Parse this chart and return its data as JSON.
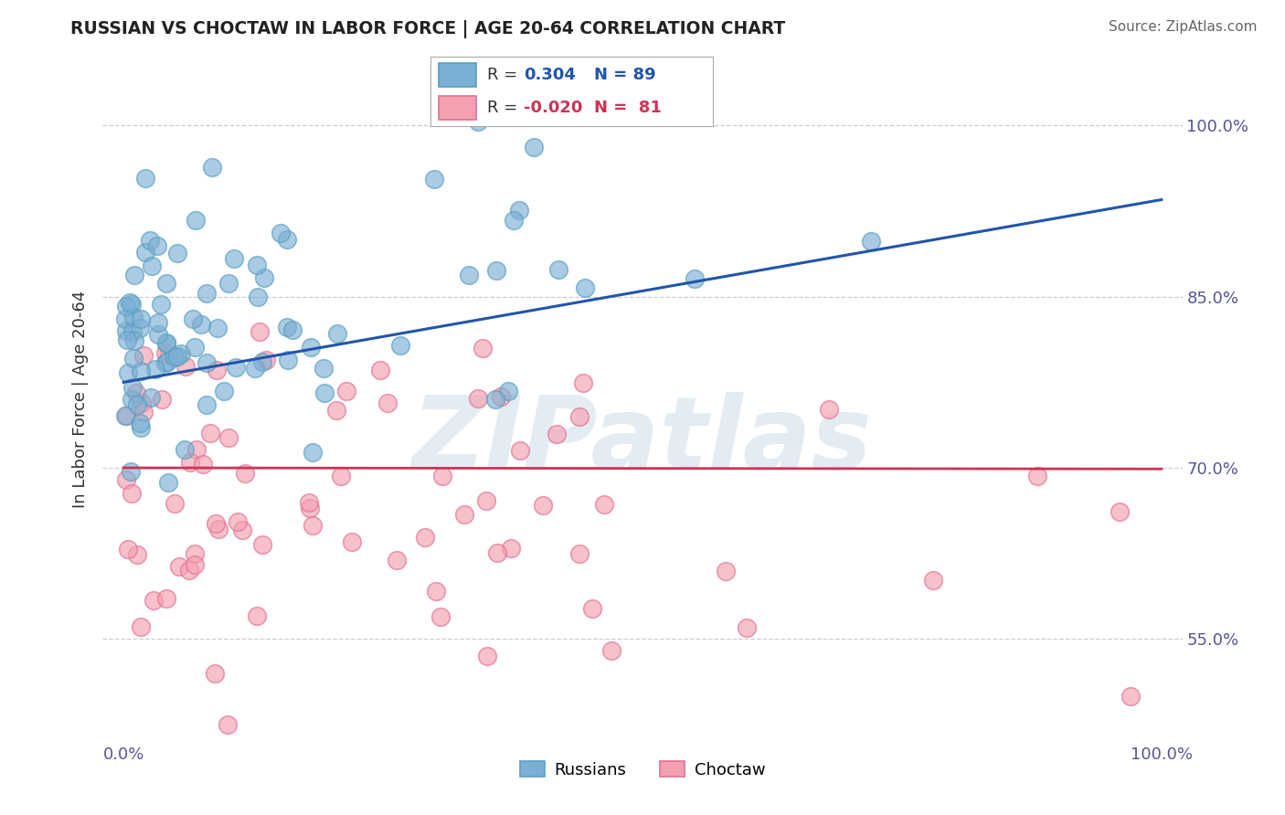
{
  "title": "RUSSIAN VS CHOCTAW IN LABOR FORCE | AGE 20-64 CORRELATION CHART",
  "source": "Source: ZipAtlas.com",
  "ylabel": "In Labor Force | Age 20-64",
  "xlim": [
    -0.02,
    1.02
  ],
  "ylim": [
    0.46,
    1.06
  ],
  "x_tick_labels": [
    "0.0%",
    "100.0%"
  ],
  "x_tick_pos": [
    0.0,
    1.0
  ],
  "y_tick_labels": [
    "55.0%",
    "70.0%",
    "85.0%",
    "100.0%"
  ],
  "y_tick_pos": [
    0.55,
    0.7,
    0.85,
    1.0
  ],
  "russian_color": "#7bafd4",
  "russian_edge_color": "#5a9fc0",
  "choctaw_color": "#f4a0b0",
  "choctaw_edge_color": "#e07090",
  "russian_line_color": "#2255aa",
  "choctaw_line_color": "#cc3355",
  "R_russian": 0.304,
  "N_russian": 89,
  "R_choctaw": -0.02,
  "N_choctaw": 81,
  "watermark": "ZIPatlas",
  "background_color": "#ffffff",
  "grid_color": "#cccccc",
  "title_color": "#222222",
  "label_color": "#555599",
  "tick_color": "#555599",
  "russian_line_y0": 0.775,
  "russian_line_y1": 0.935,
  "choctaw_line_y0": 0.7,
  "choctaw_line_y1": 0.699
}
